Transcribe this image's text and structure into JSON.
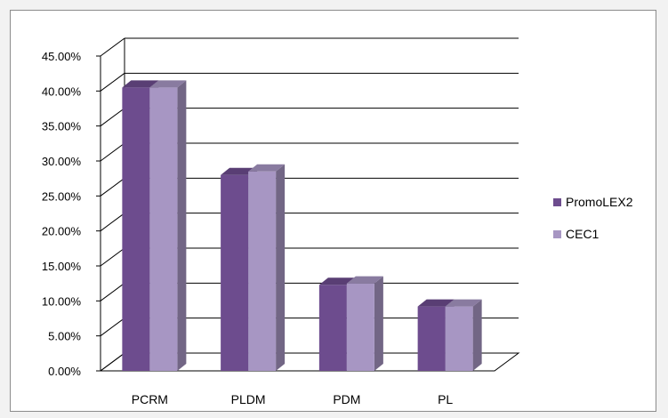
{
  "chart_data": {
    "type": "bar",
    "categories": [
      "PCRM",
      "PLDM",
      "PDM",
      "PL"
    ],
    "series": [
      {
        "name": "PromoLEX2",
        "values": [
          40.5,
          28.0,
          12.3,
          9.2
        ]
      },
      {
        "name": "CEC1",
        "values": [
          40.5,
          28.5,
          12.5,
          9.2
        ]
      }
    ],
    "y_ticks": [
      "0.00%",
      "5.00%",
      "10.00%",
      "15.00%",
      "20.00%",
      "25.00%",
      "30.00%",
      "35.00%",
      "40.00%",
      "45.00%"
    ],
    "ylim": [
      0,
      45
    ],
    "title": "",
    "xlabel": "",
    "ylabel": "",
    "grid": true,
    "legend_position": "right",
    "style": "3d-clustered-column",
    "colors": {
      "PromoLEX2": "#6d4c8e",
      "CEC1": "#a796c3",
      "grid": "#000000",
      "frame": "#8c8c8c"
    }
  }
}
